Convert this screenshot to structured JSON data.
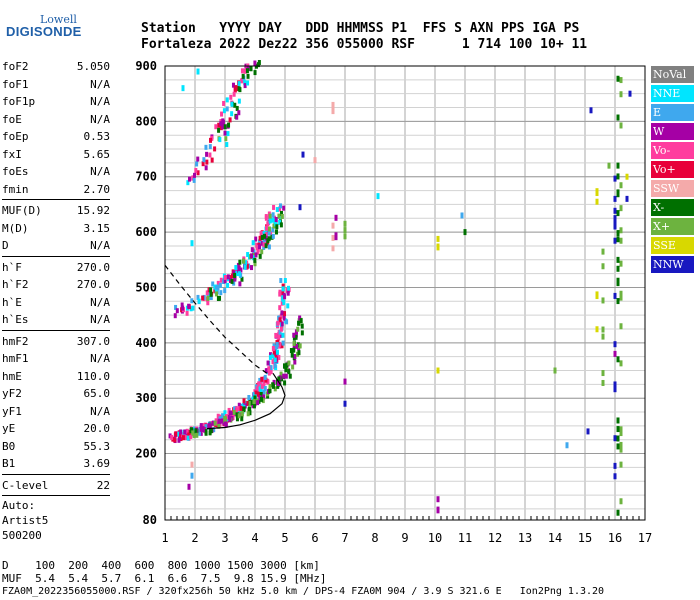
{
  "logo": {
    "top": "Lowell",
    "bottom": "DIGISONDE"
  },
  "header": {
    "row1": "Station   YYYY DAY   DDD HHMMSS P1  FFS S AXN PPS IGA PS",
    "row2": "Fortaleza 2022 Dez22 356 055000 RSF      1 714 100 10+ 11"
  },
  "params_top": [
    {
      "label": "foF2",
      "value": "5.050"
    },
    {
      "label": "foF1",
      "value": "N/A"
    },
    {
      "label": "foF1p",
      "value": "N/A"
    },
    {
      "label": "foE",
      "value": "N/A"
    },
    {
      "label": "foEp",
      "value": "0.53"
    },
    {
      "label": "fxI",
      "value": "5.65"
    },
    {
      "label": "foEs",
      "value": "N/A"
    },
    {
      "label": "fmin",
      "value": "2.70"
    }
  ],
  "params_muf": [
    {
      "label": "MUF(D)",
      "value": "15.92"
    },
    {
      "label": "M(D)",
      "value": "3.15"
    },
    {
      "label": "D",
      "value": "N/A"
    }
  ],
  "params_h": [
    {
      "label": "h`F",
      "value": "270.0"
    },
    {
      "label": "h`F2",
      "value": "270.0"
    },
    {
      "label": "h`E",
      "value": "N/A"
    },
    {
      "label": "h`Es",
      "value": "N/A"
    }
  ],
  "params_hm": [
    {
      "label": "hmF2",
      "value": "307.0"
    },
    {
      "label": "hmF1",
      "value": "N/A"
    },
    {
      "label": "hmE",
      "value": "110.0"
    },
    {
      "label": "yF2",
      "value": "65.0"
    },
    {
      "label": "yF1",
      "value": "N/A"
    },
    {
      "label": "yE",
      "value": "20.0"
    },
    {
      "label": "B0",
      "value": "55.3"
    },
    {
      "label": "B1",
      "value": "3.69"
    }
  ],
  "params_c": [
    {
      "label": "C-level",
      "value": "22"
    }
  ],
  "auto": {
    "line1": "Auto:",
    "line2": "Artist5",
    "line3": "500200"
  },
  "legend": [
    {
      "label": "NoVal",
      "color": "#808080"
    },
    {
      "label": "NNE",
      "color": "#00e5ff"
    },
    {
      "label": "E",
      "color": "#3fa8ee"
    },
    {
      "label": "W",
      "color": "#a500a5"
    },
    {
      "label": "Vo-",
      "color": "#ff3c9e"
    },
    {
      "label": "Vo+",
      "color": "#e8003a"
    },
    {
      "label": "SSW",
      "color": "#f4aaaa"
    },
    {
      "label": "X-",
      "color": "#007000"
    },
    {
      "label": "X+",
      "color": "#6db33f"
    },
    {
      "label": "SSE",
      "color": "#d8d800"
    },
    {
      "label": "NNW",
      "color": "#1818c0"
    }
  ],
  "bottom": {
    "d_row": "D    100  200  400  600  800 1000 1500 3000 [km]",
    "muf_row": "MUF  5.4  5.4  5.7  6.1  6.6  7.5  9.8 15.9 [MHz]",
    "footer": "FZA0M_2022356055000.RSF / 320fx256h 50 kHz 5.0 km / DPS-4 FZA0M 904 / 3.9 S 321.6 E   Ion2Png 1.3.20"
  },
  "chart_data": {
    "type": "scatter",
    "x_ticks": [
      1,
      2,
      3,
      4,
      5,
      6,
      7,
      8,
      9,
      10,
      11,
      12,
      13,
      14,
      15,
      16,
      17
    ],
    "y_ticks": [
      80,
      200,
      300,
      400,
      500,
      600,
      700,
      800,
      900
    ],
    "xlim": [
      1,
      17
    ],
    "ylim": [
      80,
      900
    ],
    "grid": true,
    "legend_placement": "right",
    "traces": {
      "o_trace_1": [
        [
          1.3,
          228
        ],
        [
          1.6,
          232
        ],
        [
          2.0,
          240
        ],
        [
          2.5,
          250
        ],
        [
          3.0,
          265
        ],
        [
          3.5,
          280
        ],
        [
          3.9,
          300
        ],
        [
          4.2,
          320
        ],
        [
          4.5,
          350
        ],
        [
          4.7,
          380
        ],
        [
          4.85,
          420
        ],
        [
          4.95,
          460
        ],
        [
          5.0,
          510
        ]
      ],
      "x_trace_1": [
        [
          1.9,
          236
        ],
        [
          2.4,
          244
        ],
        [
          3.0,
          258
        ],
        [
          3.5,
          272
        ],
        [
          4.0,
          290
        ],
        [
          4.5,
          312
        ],
        [
          4.9,
          332
        ],
        [
          5.2,
          360
        ],
        [
          5.4,
          400
        ],
        [
          5.5,
          440
        ]
      ],
      "o_trace_2": [
        [
          1.5,
          455
        ],
        [
          2.0,
          470
        ],
        [
          2.5,
          490
        ],
        [
          3.0,
          510
        ],
        [
          3.5,
          535
        ],
        [
          4.0,
          565
        ],
        [
          4.3,
          590
        ],
        [
          4.5,
          615
        ],
        [
          4.7,
          650
        ]
      ],
      "x_trace_2": [
        [
          2.5,
          480
        ],
        [
          3.0,
          500
        ],
        [
          3.5,
          525
        ],
        [
          4.0,
          555
        ],
        [
          4.4,
          585
        ],
        [
          4.7,
          615
        ],
        [
          4.9,
          650
        ]
      ],
      "o_trace_3": [
        [
          1.8,
          690
        ],
        [
          2.2,
          720
        ],
        [
          2.6,
          760
        ],
        [
          2.9,
          800
        ],
        [
          3.2,
          840
        ],
        [
          3.5,
          880
        ],
        [
          3.7,
          900
        ]
      ],
      "x_trace_3": [
        [
          2.8,
          760
        ],
        [
          3.2,
          800
        ],
        [
          3.5,
          840
        ],
        [
          3.8,
          880
        ],
        [
          4.0,
          900
        ]
      ],
      "profile_solid": [
        [
          2.4,
          245
        ],
        [
          3.0,
          247
        ],
        [
          3.5,
          252
        ],
        [
          4.0,
          260
        ],
        [
          4.5,
          272
        ],
        [
          4.9,
          290
        ],
        [
          5.0,
          305
        ],
        [
          4.9,
          320
        ],
        [
          4.6,
          345
        ]
      ],
      "profile_dashed": [
        [
          1.0,
          540
        ],
        [
          1.5,
          505
        ],
        [
          2.0,
          472
        ],
        [
          2.5,
          440
        ],
        [
          3.0,
          410
        ],
        [
          3.5,
          385
        ],
        [
          4.0,
          360
        ],
        [
          4.4,
          345
        ]
      ],
      "vertical_noise": [
        {
          "x": 6.6,
          "y": [
            640,
            560
          ],
          "color": "SSW"
        },
        {
          "x": 6.7,
          "y": [
            630,
            580
          ],
          "color": "W"
        },
        {
          "x": 7.0,
          "y": [
            620,
            570
          ],
          "color": "X+"
        },
        {
          "x": 6.6,
          "y": [
            830,
            790
          ],
          "color": "SSW"
        },
        {
          "x": 10.1,
          "y": [
            590,
            570
          ],
          "color": "SSE"
        },
        {
          "x": 10.1,
          "y": [
            130,
            90
          ],
          "color": "W"
        },
        {
          "x": 16.1,
          "y": [
            890,
            90
          ],
          "color": "X-"
        },
        {
          "x": 16.2,
          "y": [
            880,
            100
          ],
          "color": "X+"
        },
        {
          "x": 16.0,
          "y": [
            700,
            130
          ],
          "color": "NNW"
        },
        {
          "x": 15.4,
          "y": [
            680,
            420
          ],
          "color": "SSE"
        },
        {
          "x": 15.6,
          "y": [
            600,
            300
          ],
          "color": "X+"
        }
      ]
    }
  }
}
